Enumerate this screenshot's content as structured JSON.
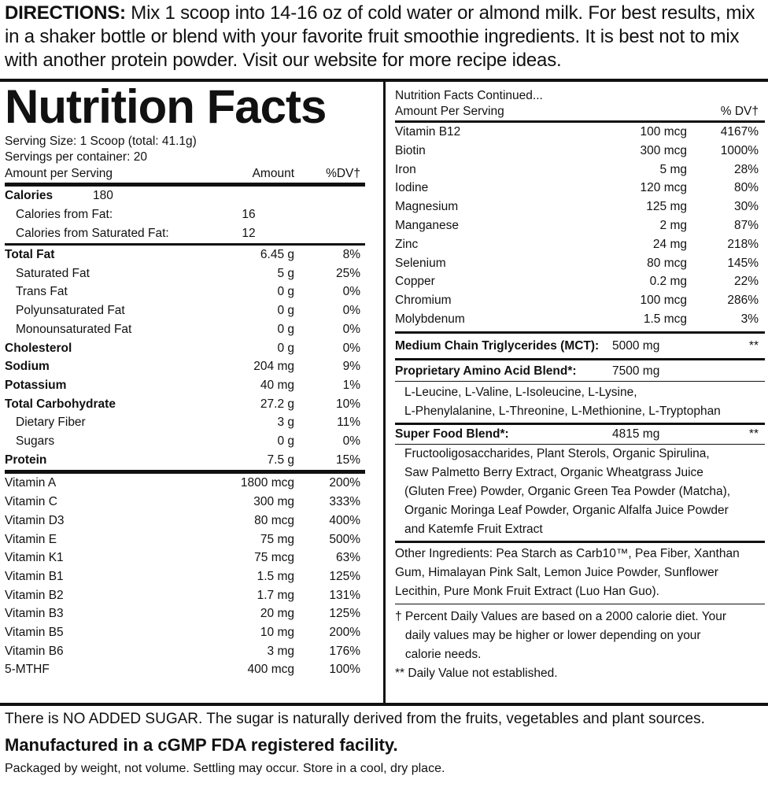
{
  "directions": {
    "label": "DIRECTIONS:",
    "text": " Mix 1 scoop into 14-16 oz of cold water or almond milk. For best results, mix in a shaker bottle or blend with your favorite fruit smoothie ingredients. It is best not to mix with another protein powder. Visit our website for more recipe ideas."
  },
  "left": {
    "title": "Nutrition Facts",
    "serving_size": "Serving Size: 1 Scoop (total: 41.1g)",
    "servings_per_container": "Servings per container: 20",
    "header": {
      "name": "Amount per Serving",
      "amount": "Amount",
      "dv": "%DV†"
    },
    "calories": {
      "label": "Calories",
      "value": "180"
    },
    "cal_fat": {
      "label": "Calories from Fat:",
      "value": "16"
    },
    "cal_sat": {
      "label": "Calories from Saturated Fat:",
      "value": "12"
    },
    "macros": [
      {
        "name": "Total Fat",
        "amount": "6.45 g",
        "dv": "8%",
        "bold": true,
        "indent": false
      },
      {
        "name": "Saturated Fat",
        "amount": "5 g",
        "dv": "25%",
        "bold": false,
        "indent": true
      },
      {
        "name": "Trans Fat",
        "amount": "0 g",
        "dv": "0%",
        "bold": false,
        "indent": true
      },
      {
        "name": "Polyunsaturated Fat",
        "amount": "0 g",
        "dv": "0%",
        "bold": false,
        "indent": true
      },
      {
        "name": "Monounsaturated Fat",
        "amount": "0 g",
        "dv": "0%",
        "bold": false,
        "indent": true
      },
      {
        "name": "Cholesterol",
        "amount": "0 g",
        "dv": "0%",
        "bold": true,
        "indent": false
      },
      {
        "name": "Sodium",
        "amount": "204 mg",
        "dv": "9%",
        "bold": true,
        "indent": false
      },
      {
        "name": "Potassium",
        "amount": "40 mg",
        "dv": "1%",
        "bold": true,
        "indent": false
      },
      {
        "name": "Total Carbohydrate",
        "amount": "27.2 g",
        "dv": "10%",
        "bold": true,
        "indent": false
      },
      {
        "name": "Dietary Fiber",
        "amount": "3 g",
        "dv": "11%",
        "bold": false,
        "indent": true
      },
      {
        "name": "Sugars",
        "amount": "0 g",
        "dv": "0%",
        "bold": false,
        "indent": true
      },
      {
        "name": "Protein",
        "amount": "7.5 g",
        "dv": "15%",
        "bold": true,
        "indent": false
      }
    ],
    "vitamins": [
      {
        "name": "Vitamin A",
        "amount": "1800 mcg",
        "dv": "200%"
      },
      {
        "name": "Vitamin C",
        "amount": "300 mg",
        "dv": "333%"
      },
      {
        "name": "Vitamin D3",
        "amount": "80 mcg",
        "dv": "400%"
      },
      {
        "name": "Vitamin E",
        "amount": "75 mg",
        "dv": "500%"
      },
      {
        "name": "Vitamin K1",
        "amount": "75 mcg",
        "dv": "63%"
      },
      {
        "name": "Vitamin B1",
        "amount": "1.5 mg",
        "dv": "125%"
      },
      {
        "name": "Vitamin B2",
        "amount": "1.7 mg",
        "dv": "131%"
      },
      {
        "name": "Vitamin B3",
        "amount": "20 mg",
        "dv": "125%"
      },
      {
        "name": "Vitamin B5",
        "amount": "10 mg",
        "dv": "200%"
      },
      {
        "name": "Vitamin B6",
        "amount": "3 mg",
        "dv": "176%"
      },
      {
        "name": "5-MTHF",
        "amount": "400 mcg",
        "dv": "100%"
      }
    ]
  },
  "right": {
    "continued": "Nutrition Facts Continued...",
    "header": {
      "name": "Amount Per Serving",
      "dv": "% DV†"
    },
    "minerals": [
      {
        "name": "Vitamin B12",
        "amount": "100 mcg",
        "dv": "4167%"
      },
      {
        "name": "Biotin",
        "amount": "300 mcg",
        "dv": "1000%"
      },
      {
        "name": "Iron",
        "amount": "5 mg",
        "dv": "28%"
      },
      {
        "name": "Iodine",
        "amount": "120 mcg",
        "dv": "80%"
      },
      {
        "name": "Magnesium",
        "amount": "125 mg",
        "dv": "30%"
      },
      {
        "name": "Manganese",
        "amount": "2 mg",
        "dv": "87%"
      },
      {
        "name": "Zinc",
        "amount": "24 mg",
        "dv": "218%"
      },
      {
        "name": "Selenium",
        "amount": "80 mcg",
        "dv": "145%"
      },
      {
        "name": "Copper",
        "amount": "0.2 mg",
        "dv": "22%"
      },
      {
        "name": "Chromium",
        "amount": "100 mcg",
        "dv": "286%"
      },
      {
        "name": "Molybdenum",
        "amount": "1.5 mcg",
        "dv": "3%"
      }
    ],
    "mct": {
      "name": "Medium Chain Triglycerides (MCT):",
      "amount": "5000 mg",
      "dv": "**"
    },
    "amino": {
      "name": "Proprietary Amino Acid Blend*:",
      "amount": "7500 mg",
      "line1": "L-Leucine, L-Valine, L-Isoleucine, L-Lysine,",
      "line2": "L-Phenylalanine, L-Threonine, L-Methionine, L-Tryptophan"
    },
    "superfood": {
      "name": "Super Food Blend*:",
      "amount": "4815 mg",
      "dv": "**",
      "lines": [
        "Fructooligosaccharides, Plant Sterols,  Organic Spirulina,",
        "Saw Palmetto Berry Extract, Organic Wheatgrass Juice",
        "(Gluten Free) Powder, Organic Green Tea Powder (Matcha),",
        "Organic Moringa Leaf Powder, Organic Alfalfa Juice Powder",
        "and Katemfe Fruit Extract"
      ]
    },
    "other_ingredients": [
      "Other Ingredients: Pea Starch as Carb10™, Pea Fiber, Xanthan",
      "Gum, Himalayan Pink Salt, Lemon Juice Powder, Sunflower",
      "Lecithin, Pure Monk Fruit Extract (Luo Han Guo)."
    ],
    "footnotes": [
      "† Percent Daily Values are based on a 2000 calorie diet. Your",
      "   daily values may be higher or lower depending on your",
      "   calorie needs.",
      "** Daily Value not established."
    ]
  },
  "footer": {
    "sugar_note": "There is NO ADDED SUGAR. The sugar is naturally derived from the fruits, vegetables and plant sources.",
    "facility": "Manufactured in a cGMP FDA registered facility.",
    "storage": "Packaged by weight, not volume. Settling may occur. Store in a cool, dry place."
  }
}
